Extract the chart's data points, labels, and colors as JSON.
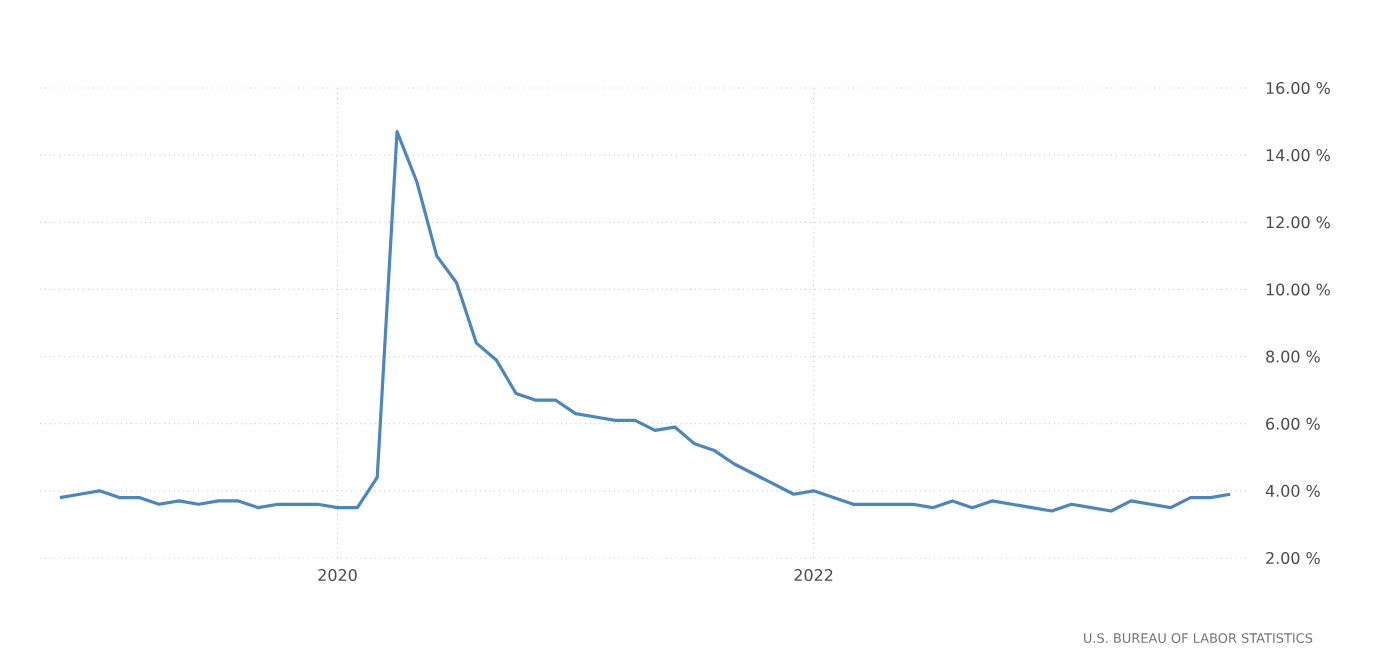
{
  "chart_data": {
    "type": "line",
    "x": [
      "2018-11",
      "2018-12",
      "2019-01",
      "2019-02",
      "2019-03",
      "2019-04",
      "2019-05",
      "2019-06",
      "2019-07",
      "2019-08",
      "2019-09",
      "2019-10",
      "2019-11",
      "2019-12",
      "2020-01",
      "2020-02",
      "2020-03",
      "2020-04",
      "2020-05",
      "2020-06",
      "2020-07",
      "2020-08",
      "2020-09",
      "2020-10",
      "2020-11",
      "2020-12",
      "2021-01",
      "2021-02",
      "2021-03",
      "2021-04",
      "2021-05",
      "2021-06",
      "2021-07",
      "2021-08",
      "2021-09",
      "2021-10",
      "2021-11",
      "2021-12",
      "2022-01",
      "2022-02",
      "2022-03",
      "2022-04",
      "2022-05",
      "2022-06",
      "2022-07",
      "2022-08",
      "2022-09",
      "2022-10",
      "2022-11",
      "2022-12",
      "2023-01",
      "2023-02",
      "2023-03",
      "2023-04",
      "2023-05",
      "2023-06",
      "2023-07",
      "2023-08",
      "2023-09",
      "2023-10"
    ],
    "series": [
      {
        "color": "#4a86c0",
        "values": [
          3.8,
          3.9,
          4.0,
          3.8,
          3.8,
          3.6,
          3.7,
          3.6,
          3.7,
          3.7,
          3.5,
          3.6,
          3.6,
          3.6,
          3.5,
          3.5,
          4.4,
          14.7,
          13.2,
          11.0,
          10.2,
          8.4,
          7.9,
          6.9,
          6.7,
          6.7,
          6.3,
          6.2,
          6.1,
          6.1,
          5.8,
          5.9,
          5.4,
          5.2,
          4.8,
          4.5,
          4.2,
          3.9,
          4.0,
          3.8,
          3.6,
          3.6,
          3.6,
          3.6,
          3.5,
          3.7,
          3.5,
          3.7,
          3.6,
          3.5,
          3.4,
          3.6,
          3.5,
          3.4,
          3.7,
          3.6,
          3.5,
          3.8,
          3.8,
          3.9
        ]
      }
    ],
    "xlim": [
      "2018-10",
      "2023-11"
    ],
    "xticks": [
      "2020",
      "2022"
    ],
    "ylim": [
      2,
      16
    ],
    "yticks": [
      {
        "value": 2,
        "label": "2.00 %"
      },
      {
        "value": 4,
        "label": "4.00 %"
      },
      {
        "value": 6,
        "label": "6.00 %"
      },
      {
        "value": 8,
        "label": "8.00 %"
      },
      {
        "value": 10,
        "label": "10.00 %"
      },
      {
        "value": 12,
        "label": "12.00 %"
      },
      {
        "value": 14,
        "label": "14.00 %"
      },
      {
        "value": 16,
        "label": "16.00 %"
      }
    ],
    "grid": true,
    "marker": "none",
    "line_style": "solid",
    "annotations": [
      "U.S. BUREAU OF LABOR STATISTICS"
    ]
  }
}
